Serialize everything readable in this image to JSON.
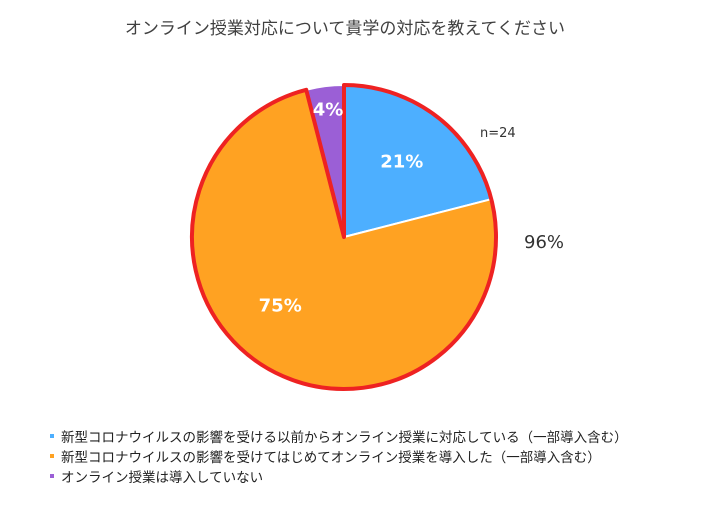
{
  "chart_data": {
    "type": "pie",
    "title": "オンライン授業対応について貴学の対応を教えてください",
    "sample_note": "n=24",
    "highlight_label": "96%",
    "slices": [
      {
        "label": "新型コロナウイルスの影響を受ける以前からオンライン授業に対応している（一部導入含む）",
        "value": 21,
        "value_label": "21%",
        "color": "#4dafff"
      },
      {
        "label": "新型コロナウイルスの影響を受けてはじめてオンライン授業を導入した（一部導入含む）",
        "value": 75,
        "value_label": "75%",
        "color": "#ffa222"
      },
      {
        "label": "オンライン授業は導入していない",
        "value": 4,
        "value_label": "4%",
        "color": "#9b5fd6"
      }
    ],
    "highlight_color": "#ee2222",
    "legend_position": "bottom-left"
  }
}
